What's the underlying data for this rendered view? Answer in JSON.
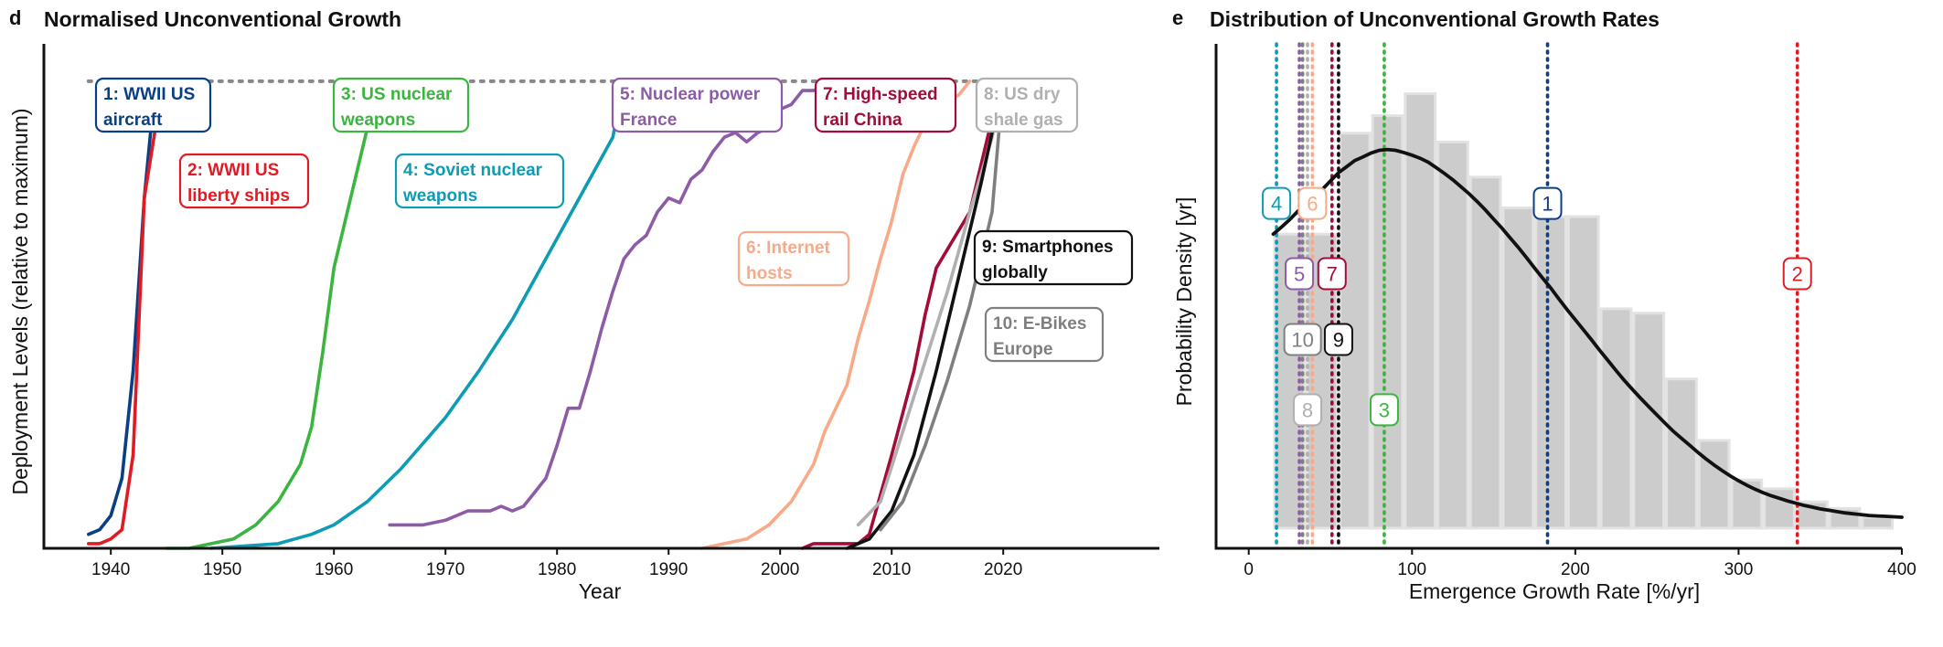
{
  "chart_data": [
    {
      "panel": "d",
      "type": "line",
      "title": "Normalised Unconventional Growth",
      "xlabel": "Year",
      "ylabel": "Deployment Levels (relative to maximum)",
      "xlim": [
        1934,
        2034
      ],
      "ylim": [
        0,
        1.08
      ],
      "xticks": [
        1940,
        1950,
        1960,
        1970,
        1980,
        1990,
        2000,
        2010,
        2020
      ],
      "reference_line": {
        "y": 1.0,
        "x": [
          1938,
          2024
        ],
        "color": "#888888"
      },
      "series": [
        {
          "id": "1",
          "name": "1: WWII US aircraft",
          "label_lines": [
            "1: WWII US",
            "aircraft"
          ],
          "color": "#0b3f85",
          "label_pos": "top",
          "points": [
            [
              1938,
              0.03
            ],
            [
              1939,
              0.04
            ],
            [
              1940,
              0.07
            ],
            [
              1941,
              0.15
            ],
            [
              1942,
              0.38
            ],
            [
              1943,
              0.75
            ],
            [
              1944,
              1.0
            ]
          ]
        },
        {
          "id": "2",
          "name": "2: WWII US liberty ships",
          "label_lines": [
            "2: WWII US",
            "liberty ships"
          ],
          "color": "#e01b23",
          "label_pos": "inner",
          "points": [
            [
              1938,
              0.01
            ],
            [
              1939,
              0.01
            ],
            [
              1940,
              0.02
            ],
            [
              1941,
              0.04
            ],
            [
              1942,
              0.2
            ],
            [
              1943,
              0.75
            ],
            [
              1944,
              0.9
            ],
            [
              1944.6,
              1.0
            ]
          ]
        },
        {
          "id": "3",
          "name": "3: US nuclear weapons",
          "label_lines": [
            "3: US nuclear",
            "weapons"
          ],
          "color": "#3bb53f",
          "label_pos": "top",
          "points": [
            [
              1945,
              0.0
            ],
            [
              1947,
              0.0
            ],
            [
              1949,
              0.01
            ],
            [
              1951,
              0.02
            ],
            [
              1953,
              0.05
            ],
            [
              1955,
              0.1
            ],
            [
              1957,
              0.18
            ],
            [
              1958,
              0.26
            ],
            [
              1959,
              0.42
            ],
            [
              1960,
              0.6
            ],
            [
              1961,
              0.7
            ],
            [
              1962,
              0.8
            ],
            [
              1963,
              0.9
            ],
            [
              1964,
              0.94
            ],
            [
              1965,
              0.99
            ],
            [
              1966,
              1.0
            ]
          ]
        },
        {
          "id": "4",
          "name": "4: Soviet nuclear weapons",
          "label_lines": [
            "4: Soviet nuclear",
            "weapons"
          ],
          "color": "#0d9bb5",
          "label_pos": "inner",
          "points": [
            [
              1949,
              0.0
            ],
            [
              1955,
              0.01
            ],
            [
              1958,
              0.03
            ],
            [
              1960,
              0.05
            ],
            [
              1963,
              0.1
            ],
            [
              1966,
              0.17
            ],
            [
              1970,
              0.28
            ],
            [
              1973,
              0.38
            ],
            [
              1976,
              0.49
            ],
            [
              1979,
              0.62
            ],
            [
              1982,
              0.75
            ],
            [
              1985,
              0.88
            ],
            [
              1986,
              1.0
            ]
          ]
        },
        {
          "id": "5",
          "name": "5: Nuclear power France",
          "label_lines": [
            "5: Nuclear power",
            "France"
          ],
          "color": "#8c5ca6",
          "label_pos": "top",
          "points": [
            [
              1965,
              0.05
            ],
            [
              1968,
              0.05
            ],
            [
              1970,
              0.06
            ],
            [
              1972,
              0.08
            ],
            [
              1974,
              0.08
            ],
            [
              1975,
              0.09
            ],
            [
              1976,
              0.08
            ],
            [
              1977,
              0.09
            ],
            [
              1978,
              0.12
            ],
            [
              1979,
              0.15
            ],
            [
              1980,
              0.22
            ],
            [
              1981,
              0.3
            ],
            [
              1982,
              0.3
            ],
            [
              1983,
              0.38
            ],
            [
              1984,
              0.47
            ],
            [
              1985,
              0.55
            ],
            [
              1986,
              0.62
            ],
            [
              1987,
              0.65
            ],
            [
              1988,
              0.67
            ],
            [
              1989,
              0.72
            ],
            [
              1990,
              0.75
            ],
            [
              1991,
              0.74
            ],
            [
              1992,
              0.79
            ],
            [
              1993,
              0.81
            ],
            [
              1994,
              0.85
            ],
            [
              1995,
              0.88
            ],
            [
              1996,
              0.89
            ],
            [
              1997,
              0.87
            ],
            [
              1998,
              0.89
            ],
            [
              1999,
              0.9
            ],
            [
              2000,
              0.94
            ],
            [
              2001,
              0.95
            ],
            [
              2002,
              0.98
            ],
            [
              2003,
              0.98
            ],
            [
              2004,
              0.99
            ],
            [
              2005,
              1.0
            ]
          ]
        },
        {
          "id": "6",
          "name": "6: Internet hosts",
          "label_lines": [
            "6: Internet",
            "hosts"
          ],
          "color": "#f8aa88",
          "label_pos": "inner",
          "points": [
            [
              1993,
              0.0
            ],
            [
              1995,
              0.01
            ],
            [
              1997,
              0.02
            ],
            [
              1999,
              0.05
            ],
            [
              2001,
              0.1
            ],
            [
              2003,
              0.18
            ],
            [
              2004,
              0.25
            ],
            [
              2006,
              0.35
            ],
            [
              2007,
              0.45
            ],
            [
              2008,
              0.53
            ],
            [
              2009,
              0.62
            ],
            [
              2010,
              0.7
            ],
            [
              2011,
              0.8
            ],
            [
              2012,
              0.86
            ],
            [
              2013,
              0.91
            ],
            [
              2014,
              0.93
            ],
            [
              2015,
              0.96
            ],
            [
              2016,
              0.97
            ],
            [
              2017,
              1.0
            ]
          ]
        },
        {
          "id": "7",
          "name": "7: High-speed rail China",
          "label_lines": [
            "7: High-speed",
            "rail China"
          ],
          "color": "#a30c38",
          "label_pos": "top",
          "points": [
            [
              2002,
              0.0
            ],
            [
              2003,
              0.01
            ],
            [
              2005,
              0.01
            ],
            [
              2007,
              0.01
            ],
            [
              2008,
              0.03
            ],
            [
              2010,
              0.2
            ],
            [
              2012,
              0.38
            ],
            [
              2013,
              0.5
            ],
            [
              2014,
              0.6
            ],
            [
              2016,
              0.68
            ],
            [
              2017,
              0.72
            ],
            [
              2018,
              0.82
            ],
            [
              2019,
              0.92
            ],
            [
              2020,
              1.0
            ]
          ]
        },
        {
          "id": "8",
          "name": "8: US dry shale gas",
          "label_lines": [
            "8: US dry",
            "shale gas"
          ],
          "color": "#b0b0b0",
          "label_pos": "top",
          "points": [
            [
              2007,
              0.05
            ],
            [
              2009,
              0.1
            ],
            [
              2011,
              0.25
            ],
            [
              2013,
              0.4
            ],
            [
              2015,
              0.55
            ],
            [
              2017,
              0.72
            ],
            [
              2019,
              0.88
            ],
            [
              2020,
              1.0
            ]
          ]
        },
        {
          "id": "9",
          "name": "9: Smartphones globally",
          "label_lines": [
            "9: Smartphones",
            "globally"
          ],
          "color": "#111111",
          "label_pos": "inner",
          "points": [
            [
              2006,
              0.0
            ],
            [
              2008,
              0.02
            ],
            [
              2010,
              0.08
            ],
            [
              2012,
              0.2
            ],
            [
              2014,
              0.38
            ],
            [
              2016,
              0.58
            ],
            [
              2018,
              0.78
            ],
            [
              2020,
              1.0
            ]
          ]
        },
        {
          "id": "10",
          "name": "10: E-Bikes Europe",
          "label_lines": [
            "10: E-Bikes",
            "Europe"
          ],
          "color": "#7f7f7f",
          "label_pos": "inner",
          "points": [
            [
              2009,
              0.04
            ],
            [
              2011,
              0.1
            ],
            [
              2013,
              0.22
            ],
            [
              2015,
              0.36
            ],
            [
              2017,
              0.52
            ],
            [
              2019,
              0.72
            ],
            [
              2020,
              1.0
            ]
          ]
        }
      ]
    },
    {
      "panel": "e",
      "type": "histogram",
      "title": "Distribution of Unconventional Growth Rates",
      "xlabel": "Emergence Growth Rate [%/yr]",
      "ylabel": "Probability Density [yr]",
      "xlim": [
        -20,
        400
      ],
      "ylim": [
        0,
        1.0
      ],
      "xticks": [
        0,
        100,
        200,
        300,
        400
      ],
      "bar_color": "#cccccc",
      "bins": {
        "edges": [
          15,
          35,
          55,
          75,
          95,
          115,
          135,
          155,
          175,
          195,
          215,
          235,
          255,
          275,
          295,
          315,
          335,
          355,
          375,
          395
        ],
        "heights": [
          0.67,
          0.67,
          0.9,
          0.94,
          0.99,
          0.88,
          0.8,
          0.73,
          0.71,
          0.71,
          0.5,
          0.49,
          0.34,
          0.2,
          0.11,
          0.09,
          0.06,
          0.045,
          0.025
        ]
      },
      "density_curve": {
        "color": "#111111",
        "x": [
          15,
          20,
          25,
          30,
          35,
          40,
          45,
          50,
          55,
          60,
          65,
          70,
          75,
          80,
          85,
          90,
          95,
          100,
          105,
          110,
          115,
          120,
          125,
          130,
          135,
          140,
          145,
          150,
          155,
          160,
          165,
          170,
          175,
          180,
          185,
          190,
          195,
          200,
          205,
          210,
          215,
          220,
          225,
          230,
          235,
          240,
          245,
          250,
          255,
          260,
          265,
          270,
          275,
          280,
          285,
          290,
          295,
          300,
          305,
          310,
          315,
          320,
          325,
          330,
          335,
          340,
          345,
          350,
          355,
          360,
          365,
          370,
          375,
          380,
          385,
          390,
          395,
          400
        ],
        "y": [
          0.67,
          0.686,
          0.703,
          0.722,
          0.739,
          0.757,
          0.772,
          0.791,
          0.81,
          0.824,
          0.838,
          0.846,
          0.855,
          0.861,
          0.863,
          0.861,
          0.856,
          0.85,
          0.843,
          0.834,
          0.821,
          0.808,
          0.794,
          0.778,
          0.762,
          0.744,
          0.725,
          0.704,
          0.684,
          0.662,
          0.64,
          0.617,
          0.593,
          0.57,
          0.547,
          0.522,
          0.498,
          0.475,
          0.452,
          0.429,
          0.405,
          0.382,
          0.359,
          0.337,
          0.316,
          0.296,
          0.277,
          0.258,
          0.239,
          0.221,
          0.205,
          0.189,
          0.173,
          0.158,
          0.144,
          0.131,
          0.119,
          0.108,
          0.098,
          0.089,
          0.081,
          0.074,
          0.068,
          0.062,
          0.057,
          0.052,
          0.048,
          0.044,
          0.041,
          0.038,
          0.035,
          0.033,
          0.031,
          0.029,
          0.028,
          0.027,
          0.026,
          0.025
        ]
      },
      "markers": [
        {
          "id": "1",
          "x": 183,
          "y": 0.74,
          "color": "#0b3f85"
        },
        {
          "id": "2",
          "x": 336,
          "y": 0.58,
          "color": "#e01b23"
        },
        {
          "id": "3",
          "x": 83,
          "y": 0.27,
          "color": "#3bb53f"
        },
        {
          "id": "4",
          "x": 17,
          "y": 0.74,
          "color": "#0d9bb5"
        },
        {
          "id": "5",
          "x": 31,
          "y": 0.58,
          "color": "#8c5ca6"
        },
        {
          "id": "6",
          "x": 39,
          "y": 0.74,
          "color": "#f8aa88"
        },
        {
          "id": "7",
          "x": 51,
          "y": 0.58,
          "color": "#a30c38"
        },
        {
          "id": "8",
          "x": 36,
          "y": 0.27,
          "color": "#b0b0b0"
        },
        {
          "id": "9",
          "x": 55,
          "y": 0.43,
          "color": "#111111"
        },
        {
          "id": "10",
          "x": 33,
          "y": 0.43,
          "color": "#7f7f7f"
        }
      ]
    }
  ]
}
